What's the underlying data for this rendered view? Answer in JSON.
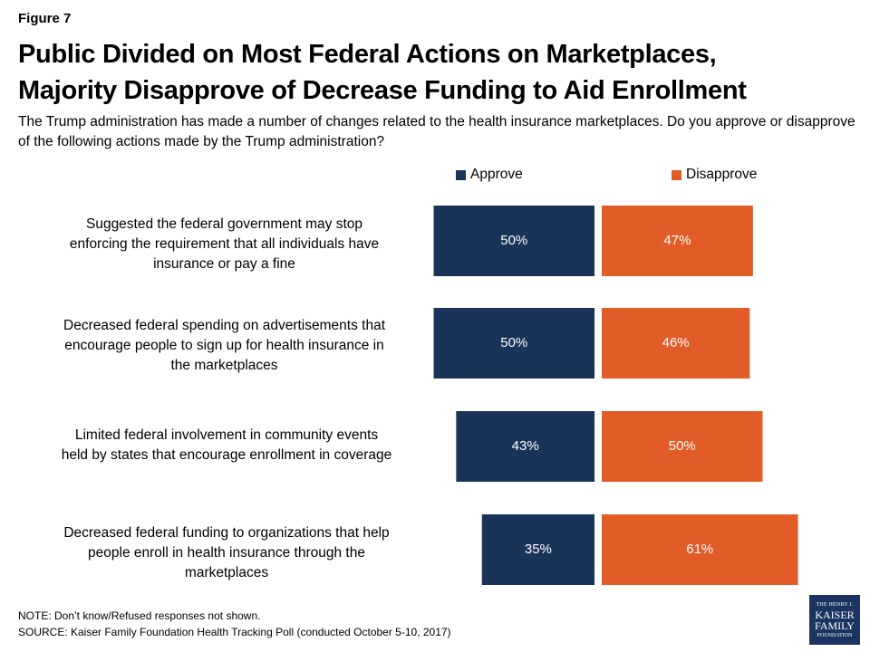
{
  "figure_label": "Figure 7",
  "title_lines": [
    "Public Divided on Most Federal Actions on Marketplaces,",
    "Majority Disapprove of Decrease Funding to Aid Enrollment"
  ],
  "subtitle": "The Trump administration has made a number of changes related to the health insurance marketplaces. Do you approve or disapprove of the following actions made by the Trump administration?",
  "colors": {
    "approve": "#1a3459",
    "disapprove": "#e25c28"
  },
  "chart_data": {
    "type": "bar",
    "orientation": "horizontal-diverging",
    "categories": [
      "Suggested the federal government may stop enforcing the requirement that all individuals have insurance or pay a fine",
      "Decreased federal spending on advertisements that encourage people to sign up for health insurance in the marketplaces",
      "Limited federal involvement in community events held by states that encourage enrollment in coverage",
      "Decreased federal funding to organizations that help people enroll in health insurance through the marketplaces"
    ],
    "category_lines": [
      [
        "Suggested the federal government may stop",
        "enforcing the requirement that all individuals have",
        "insurance or pay a fine"
      ],
      [
        "Decreased federal spending on advertisements that",
        "encourage people to sign up for health insurance in",
        "the marketplaces"
      ],
      [
        "Limited federal involvement in community events",
        "held by states that encourage enrollment in coverage"
      ],
      [
        "Decreased federal funding to organizations that help",
        "people enroll in health insurance through the",
        "marketplaces"
      ]
    ],
    "series": [
      {
        "name": "Approve",
        "values": [
          50,
          50,
          43,
          35
        ],
        "labels": [
          "50%",
          "50%",
          "43%",
          "35%"
        ]
      },
      {
        "name": "Disapprove",
        "values": [
          47,
          46,
          50,
          61
        ],
        "labels": [
          "47%",
          "46%",
          "50%",
          "61%"
        ]
      }
    ],
    "unit": "%",
    "legend_position": "top"
  },
  "footer": {
    "note": "NOTE: Don’t know/Refused responses not shown.",
    "source": "SOURCE: Kaiser Family Foundation Health Tracking Poll (conducted October 5-10, 2017)"
  },
  "logo": {
    "line1": "THE HENRY J.",
    "line2": "KAISER",
    "line3": "FAMILY",
    "line4": "FOUNDATION"
  }
}
